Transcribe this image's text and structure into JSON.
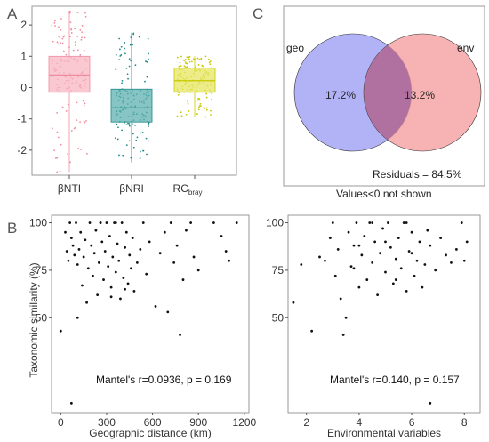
{
  "panels": {
    "a": "A",
    "b": "B",
    "c": "C"
  },
  "colors": {
    "pink": "#f4a0b0",
    "teal": "#2a9a9a",
    "yellow": "#d8d820",
    "blue": "#9f9ff5",
    "red": "#f5a0a0",
    "overlap": "#b070a0"
  },
  "chart_data": [
    {
      "type": "box",
      "panel": "A",
      "ylim": [
        -2.8,
        2.6
      ],
      "yticks": [
        "2",
        "1",
        "0",
        "-1",
        "-2"
      ],
      "categories": [
        "βNTI",
        "βNRI",
        "RC"
      ],
      "category_subscript": [
        "",
        "",
        "bray"
      ],
      "boxes": [
        {
          "q1": -0.15,
          "median": 0.4,
          "q3": 1.0,
          "min": -2.7,
          "max": 2.45,
          "color": "#f08ca0",
          "fill": "#f7b6c2"
        },
        {
          "q1": -1.1,
          "median": -0.65,
          "q3": -0.05,
          "min": -2.4,
          "max": 1.75,
          "color": "#1f8a8a",
          "fill": "#5fb0b0"
        },
        {
          "q1": -0.15,
          "median": 0.22,
          "q3": 0.62,
          "min": -0.95,
          "max": 1.0,
          "color": "#c8c800",
          "fill": "#e6e660"
        }
      ]
    },
    {
      "type": "venn",
      "panel": "C",
      "sets": [
        "geo",
        "env"
      ],
      "values": [
        "17.2%",
        "13.2%"
      ],
      "residuals": "Residuals = 84.5%",
      "caption": "Values<0 not shown"
    },
    {
      "type": "scatter",
      "panel": "B-left",
      "xlabel": "Geographic distance (km)",
      "ylabel": "Taxonomic similarity (%)",
      "xlim": [
        -60,
        1230
      ],
      "ylim": [
        0,
        104
      ],
      "xticks": [
        0,
        300,
        600,
        900,
        1200
      ],
      "yticks": [
        100,
        75,
        50
      ],
      "annotation": "Mantel's r=0.0936, p = 0.169",
      "points": [
        [
          0,
          43
        ],
        [
          30,
          95
        ],
        [
          40,
          85
        ],
        [
          50,
          80
        ],
        [
          60,
          100
        ],
        [
          70,
          92
        ],
        [
          80,
          88
        ],
        [
          90,
          83
        ],
        [
          100,
          100
        ],
        [
          110,
          78
        ],
        [
          120,
          86
        ],
        [
          130,
          95
        ],
        [
          140,
          67
        ],
        [
          150,
          82
        ],
        [
          160,
          91
        ],
        [
          170,
          58
        ],
        [
          180,
          76
        ],
        [
          190,
          100
        ],
        [
          200,
          88
        ],
        [
          210,
          72
        ],
        [
          220,
          84
        ],
        [
          230,
          96
        ],
        [
          240,
          62
        ],
        [
          250,
          79
        ],
        [
          260,
          100
        ],
        [
          270,
          90
        ],
        [
          280,
          70
        ],
        [
          290,
          85
        ],
        [
          300,
          100
        ],
        [
          310,
          77
        ],
        [
          320,
          93
        ],
        [
          330,
          66
        ],
        [
          340,
          82
        ],
        [
          350,
          100
        ],
        [
          360,
          74
        ],
        [
          370,
          89
        ],
        [
          380,
          80
        ],
        [
          390,
          60
        ],
        [
          400,
          100
        ],
        [
          410,
          71
        ],
        [
          420,
          87
        ],
        [
          430,
          95
        ],
        [
          440,
          68
        ],
        [
          450,
          83
        ],
        [
          460,
          76
        ],
        [
          470,
          92
        ],
        [
          480,
          64
        ],
        [
          500,
          79
        ],
        [
          520,
          86
        ],
        [
          540,
          100
        ],
        [
          560,
          73
        ],
        [
          580,
          90
        ],
        [
          620,
          56
        ],
        [
          650,
          84
        ],
        [
          680,
          95
        ],
        [
          700,
          53
        ],
        [
          720,
          100
        ],
        [
          740,
          79
        ],
        [
          760,
          88
        ],
        [
          780,
          41
        ],
        [
          800,
          70
        ],
        [
          820,
          96
        ],
        [
          850,
          100
        ],
        [
          870,
          82
        ],
        [
          900,
          75
        ],
        [
          1000,
          100
        ],
        [
          1050,
          93
        ],
        [
          1080,
          85
        ],
        [
          1100,
          80
        ],
        [
          1150,
          100
        ],
        [
          70,
          5
        ],
        [
          110,
          50
        ],
        [
          260,
          100
        ],
        [
          330,
          61
        ],
        [
          360,
          100
        ],
        [
          420,
          65
        ]
      ]
    },
    {
      "type": "scatter",
      "panel": "B-right",
      "xlabel": "Environmental variables",
      "ylabel": "",
      "xlim": [
        1.3,
        8.6
      ],
      "ylim": [
        0,
        104
      ],
      "xticks": [
        2,
        4,
        6,
        8
      ],
      "yticks": [
        100,
        75,
        50
      ],
      "annotation": "Mantel's r=0.140, p = 0.157",
      "points": [
        [
          1.5,
          58
        ],
        [
          1.8,
          78
        ],
        [
          2.2,
          43
        ],
        [
          2.5,
          82
        ],
        [
          2.7,
          80
        ],
        [
          2.9,
          92
        ],
        [
          3.0,
          100
        ],
        [
          3.1,
          72
        ],
        [
          3.2,
          86
        ],
        [
          3.3,
          60
        ],
        [
          3.4,
          41
        ],
        [
          3.5,
          50
        ],
        [
          3.6,
          95
        ],
        [
          3.7,
          77
        ],
        [
          3.8,
          88
        ],
        [
          3.9,
          100
        ],
        [
          4.0,
          66
        ],
        [
          4.1,
          83
        ],
        [
          4.2,
          93
        ],
        [
          4.3,
          70
        ],
        [
          4.4,
          100
        ],
        [
          4.5,
          79
        ],
        [
          4.6,
          90
        ],
        [
          4.7,
          62
        ],
        [
          4.8,
          84
        ],
        [
          4.9,
          97
        ],
        [
          5.0,
          74
        ],
        [
          5.1,
          100
        ],
        [
          5.2,
          87
        ],
        [
          5.3,
          68
        ],
        [
          5.4,
          81
        ],
        [
          5.5,
          92
        ],
        [
          5.6,
          76
        ],
        [
          5.7,
          100
        ],
        [
          5.8,
          64
        ],
        [
          5.9,
          85
        ],
        [
          6.0,
          95
        ],
        [
          6.1,
          72
        ],
        [
          6.2,
          80
        ],
        [
          6.3,
          90
        ],
        [
          6.4,
          66
        ],
        [
          6.5,
          78
        ],
        [
          6.6,
          96
        ],
        [
          6.7,
          88
        ],
        [
          6.9,
          75
        ],
        [
          7.1,
          92
        ],
        [
          7.3,
          83
        ],
        [
          7.5,
          79
        ],
        [
          7.7,
          86
        ],
        [
          7.9,
          100
        ],
        [
          8.0,
          80
        ],
        [
          8.1,
          90
        ],
        [
          6.7,
          5
        ],
        [
          4.5,
          100
        ],
        [
          5.0,
          90
        ],
        [
          3.8,
          76
        ],
        [
          4.0,
          88
        ],
        [
          5.4,
          70
        ],
        [
          6.0,
          84
        ],
        [
          5.8,
          100
        ]
      ]
    }
  ]
}
